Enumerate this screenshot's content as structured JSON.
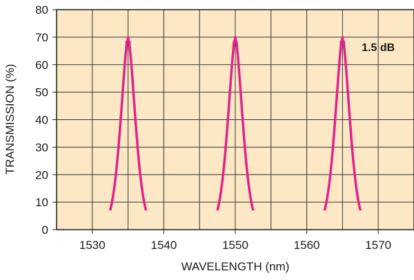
{
  "chart_data": {
    "type": "line",
    "title": "",
    "xlabel": "WAVELENGTH (nm)",
    "ylabel": "TRANSMISSION (%)",
    "xlim": [
      1525,
      1575
    ],
    "ylim": [
      0,
      80
    ],
    "x_ticks": [
      1530,
      1540,
      1550,
      1560,
      1570
    ],
    "y_ticks": [
      0,
      10,
      20,
      30,
      40,
      50,
      60,
      70,
      80
    ],
    "grid": true,
    "background_color": "#fce8c4",
    "series": [
      {
        "color": "#e0238c",
        "peaks": [
          {
            "center": 1535,
            "peak_transmission": 70,
            "base_width": 5
          },
          {
            "center": 1550,
            "peak_transmission": 70,
            "base_width": 5
          },
          {
            "center": 1565,
            "peak_transmission": 70,
            "base_width": 5
          }
        ]
      }
    ],
    "annotations": [
      {
        "text": "1.5 dB",
        "x": 1570,
        "y": 65
      }
    ]
  }
}
